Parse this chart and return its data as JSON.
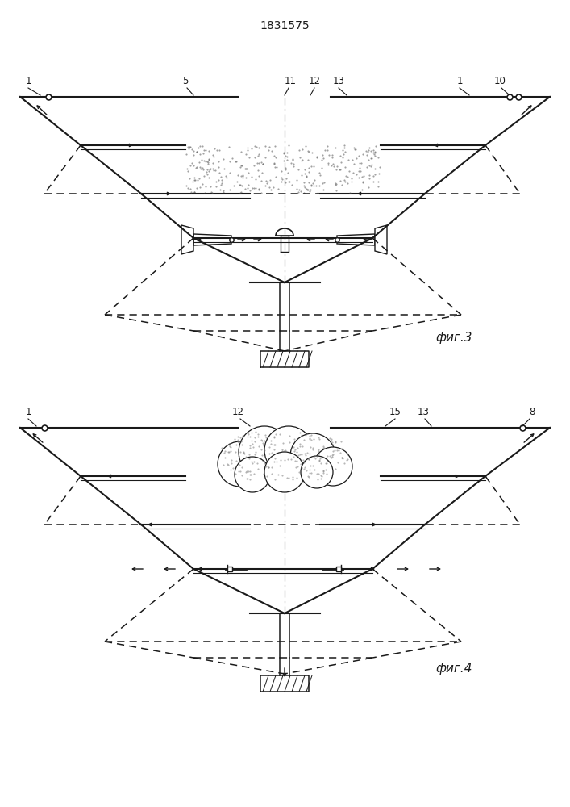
{
  "title": "1831575",
  "fig3_label": "фиг.3",
  "fig4_label": "фиг.4",
  "line_color": "#1a1a1a"
}
